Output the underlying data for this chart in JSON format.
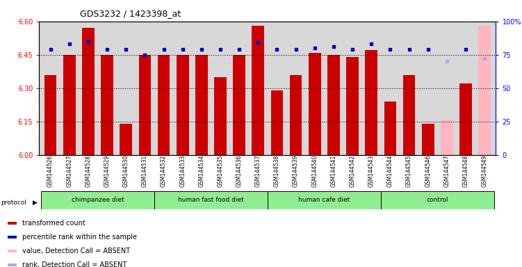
{
  "title": "GDS3232 / 1423398_at",
  "samples": [
    "GSM144526",
    "GSM144527",
    "GSM144528",
    "GSM144529",
    "GSM144530",
    "GSM144531",
    "GSM144532",
    "GSM144533",
    "GSM144534",
    "GSM144535",
    "GSM144536",
    "GSM144537",
    "GSM144538",
    "GSM144539",
    "GSM144540",
    "GSM144541",
    "GSM144542",
    "GSM144543",
    "GSM144544",
    "GSM144545",
    "GSM144546",
    "GSM144547",
    "GSM144548",
    "GSM144549"
  ],
  "bar_values": [
    6.36,
    6.45,
    6.57,
    6.45,
    6.14,
    6.45,
    6.45,
    6.45,
    6.45,
    6.35,
    6.45,
    6.58,
    6.29,
    6.36,
    6.46,
    6.45,
    6.44,
    6.47,
    6.24,
    6.36,
    6.14,
    6.16,
    6.32,
    6.58
  ],
  "rank_values": [
    79,
    83,
    85,
    79,
    79,
    75,
    79,
    79,
    79,
    79,
    79,
    84,
    79,
    79,
    80,
    81,
    79,
    83,
    79,
    79,
    79,
    70,
    79,
    72
  ],
  "absent": [
    false,
    false,
    false,
    false,
    false,
    false,
    false,
    false,
    false,
    false,
    false,
    false,
    false,
    false,
    false,
    false,
    false,
    false,
    false,
    false,
    false,
    true,
    false,
    true
  ],
  "group_boundaries": [
    {
      "name": "chimpanzee diet",
      "start": 0,
      "end": 5,
      "color": "#90EE90"
    },
    {
      "name": "human fast food diet",
      "start": 6,
      "end": 11,
      "color": "#90EE90"
    },
    {
      "name": "human cafe diet",
      "start": 12,
      "end": 17,
      "color": "#90EE90"
    },
    {
      "name": "control",
      "start": 18,
      "end": 23,
      "color": "#90EE90"
    }
  ],
  "ylim_left": [
    6.0,
    6.6
  ],
  "ylim_right": [
    0,
    100
  ],
  "yticks_left": [
    6.0,
    6.15,
    6.3,
    6.45,
    6.6
  ],
  "yticks_right": [
    0,
    25,
    50,
    75,
    100
  ],
  "bar_color": "#CC0000",
  "absent_bar_color": "#FFB6C1",
  "rank_color": "#0000CD",
  "absent_rank_color": "#AAAAEE",
  "bg_plot": "#D8D8D8",
  "legend_items": [
    {
      "label": "transformed count",
      "color": "#CC0000"
    },
    {
      "label": "percentile rank within the sample",
      "color": "#0000CD"
    },
    {
      "label": "value, Detection Call = ABSENT",
      "color": "#FFB6C1"
    },
    {
      "label": "rank, Detection Call = ABSENT",
      "color": "#AAAAEE"
    }
  ]
}
